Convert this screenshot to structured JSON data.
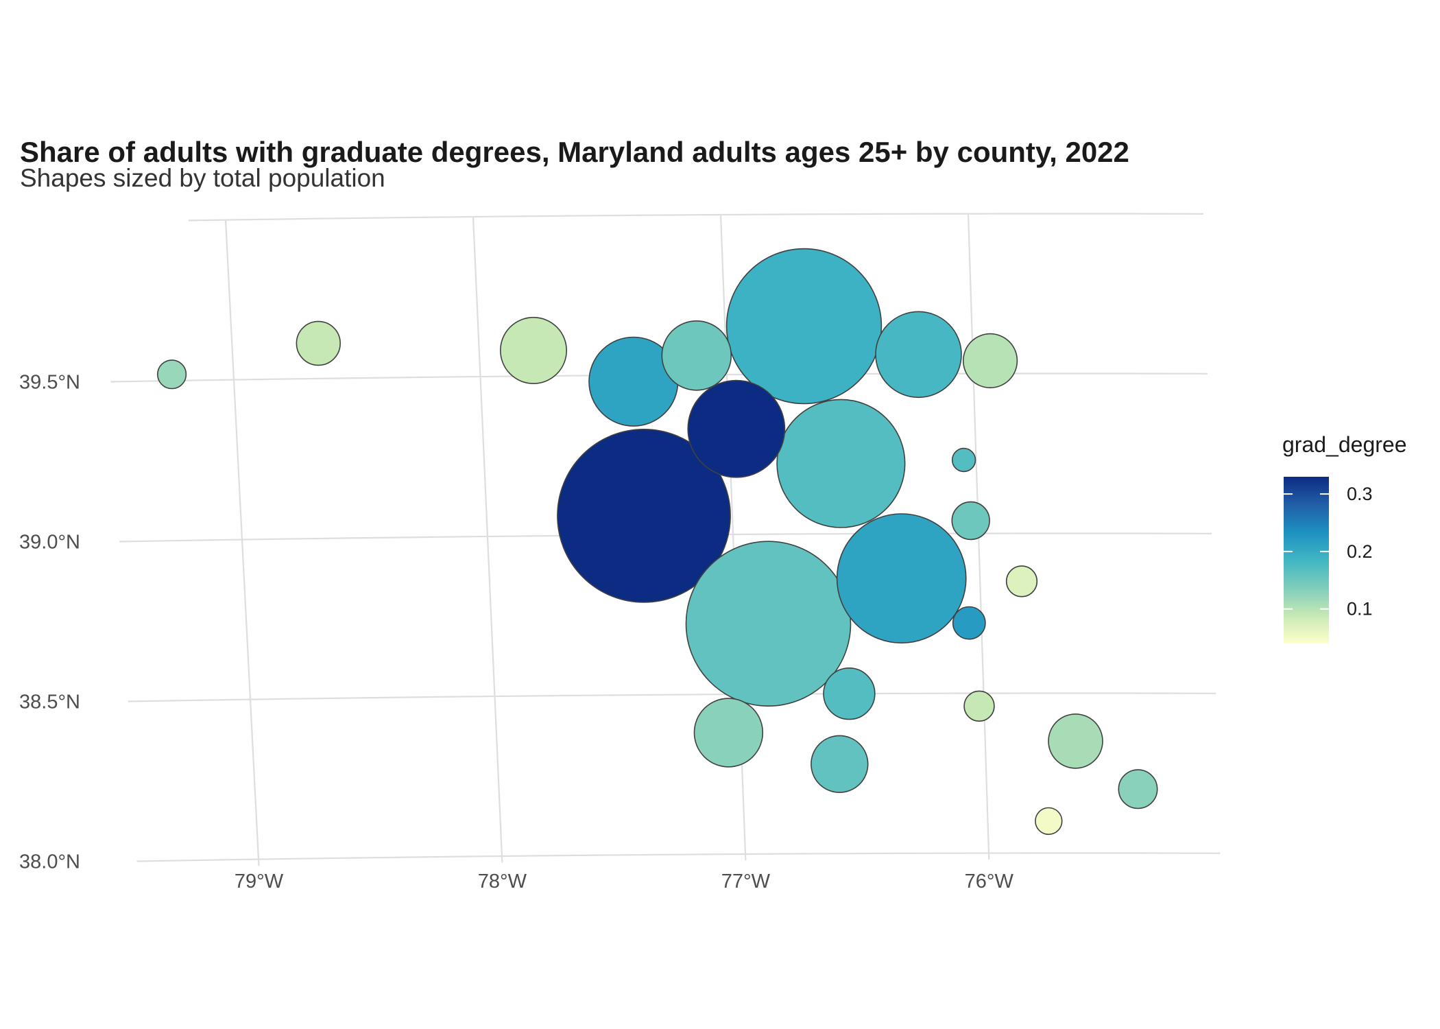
{
  "chart_data": {
    "type": "scatter",
    "title": "Share of adults with graduate degrees, Maryland adults ages 25+ by county, 2022",
    "subtitle": "Shapes sized by total population",
    "x_ticks": [
      {
        "value": -79,
        "label": "79°W"
      },
      {
        "value": -78,
        "label": "78°W"
      },
      {
        "value": -77,
        "label": "77°W"
      },
      {
        "value": -76,
        "label": "76°W"
      }
    ],
    "y_ticks": [
      {
        "value": 39.5,
        "label": "39.5°N"
      },
      {
        "value": 39.0,
        "label": "39.0°N"
      },
      {
        "value": 38.5,
        "label": "38.5°N"
      },
      {
        "value": 38.0,
        "label": "38.0°N"
      }
    ],
    "xlim": [
      -79.5,
      -75.05
    ],
    "ylim": [
      37.98,
      40.0
    ],
    "grid": true,
    "legend": {
      "title": "grad_degree",
      "position": "right",
      "range": [
        0.04,
        0.33
      ],
      "ticks": [
        {
          "value": 0.3,
          "label": "0.3"
        },
        {
          "value": 0.2,
          "label": "0.2"
        },
        {
          "value": 0.1,
          "label": "0.1"
        }
      ],
      "colors": [
        "#ffffcc",
        "#c7e9b4",
        "#7fcdbb",
        "#41b6c4",
        "#1d91c0",
        "#225ea8",
        "#0c2c84"
      ]
    },
    "points": [
      {
        "lon": -79.25,
        "lat": 39.52,
        "grad_degree": 0.12,
        "population": 28700
      },
      {
        "lon": -78.65,
        "lat": 39.61,
        "grad_degree": 0.09,
        "population": 68000
      },
      {
        "lon": -77.78,
        "lat": 39.58,
        "grad_degree": 0.09,
        "population": 155000
      },
      {
        "lon": -77.38,
        "lat": 39.48,
        "grad_degree": 0.21,
        "population": 280000
      },
      {
        "lon": -77.12,
        "lat": 39.56,
        "grad_degree": 0.15,
        "population": 170000
      },
      {
        "lon": -76.68,
        "lat": 39.65,
        "grad_degree": 0.19,
        "population": 850000
      },
      {
        "lon": -76.22,
        "lat": 39.56,
        "grad_degree": 0.18,
        "population": 260000
      },
      {
        "lon": -75.93,
        "lat": 39.54,
        "grad_degree": 0.1,
        "population": 103000
      },
      {
        "lon": -76.97,
        "lat": 39.33,
        "grad_degree": 0.33,
        "population": 332000
      },
      {
        "lon": -76.55,
        "lat": 39.22,
        "grad_degree": 0.17,
        "population": 580000
      },
      {
        "lon": -76.05,
        "lat": 39.23,
        "grad_degree": 0.17,
        "population": 19000
      },
      {
        "lon": -77.36,
        "lat": 39.06,
        "grad_degree": 0.33,
        "population": 1060000
      },
      {
        "lon": -76.03,
        "lat": 39.04,
        "grad_degree": 0.15,
        "population": 50000
      },
      {
        "lon": -75.83,
        "lat": 38.85,
        "grad_degree": 0.07,
        "population": 33000
      },
      {
        "lon": -76.32,
        "lat": 38.86,
        "grad_degree": 0.21,
        "population": 590000
      },
      {
        "lon": -76.87,
        "lat": 38.72,
        "grad_degree": 0.16,
        "population": 960000
      },
      {
        "lon": -76.05,
        "lat": 38.72,
        "grad_degree": 0.22,
        "population": 37000
      },
      {
        "lon": -76.55,
        "lat": 38.5,
        "grad_degree": 0.17,
        "population": 93000
      },
      {
        "lon": -76.02,
        "lat": 38.46,
        "grad_degree": 0.09,
        "population": 32000
      },
      {
        "lon": -77.05,
        "lat": 38.38,
        "grad_degree": 0.13,
        "population": 166000
      },
      {
        "lon": -76.6,
        "lat": 38.28,
        "grad_degree": 0.16,
        "population": 114000
      },
      {
        "lon": -75.63,
        "lat": 38.35,
        "grad_degree": 0.11,
        "population": 104000
      },
      {
        "lon": -75.38,
        "lat": 38.2,
        "grad_degree": 0.13,
        "population": 53000
      },
      {
        "lon": -75.75,
        "lat": 38.1,
        "grad_degree": 0.05,
        "population": 25000
      }
    ]
  }
}
